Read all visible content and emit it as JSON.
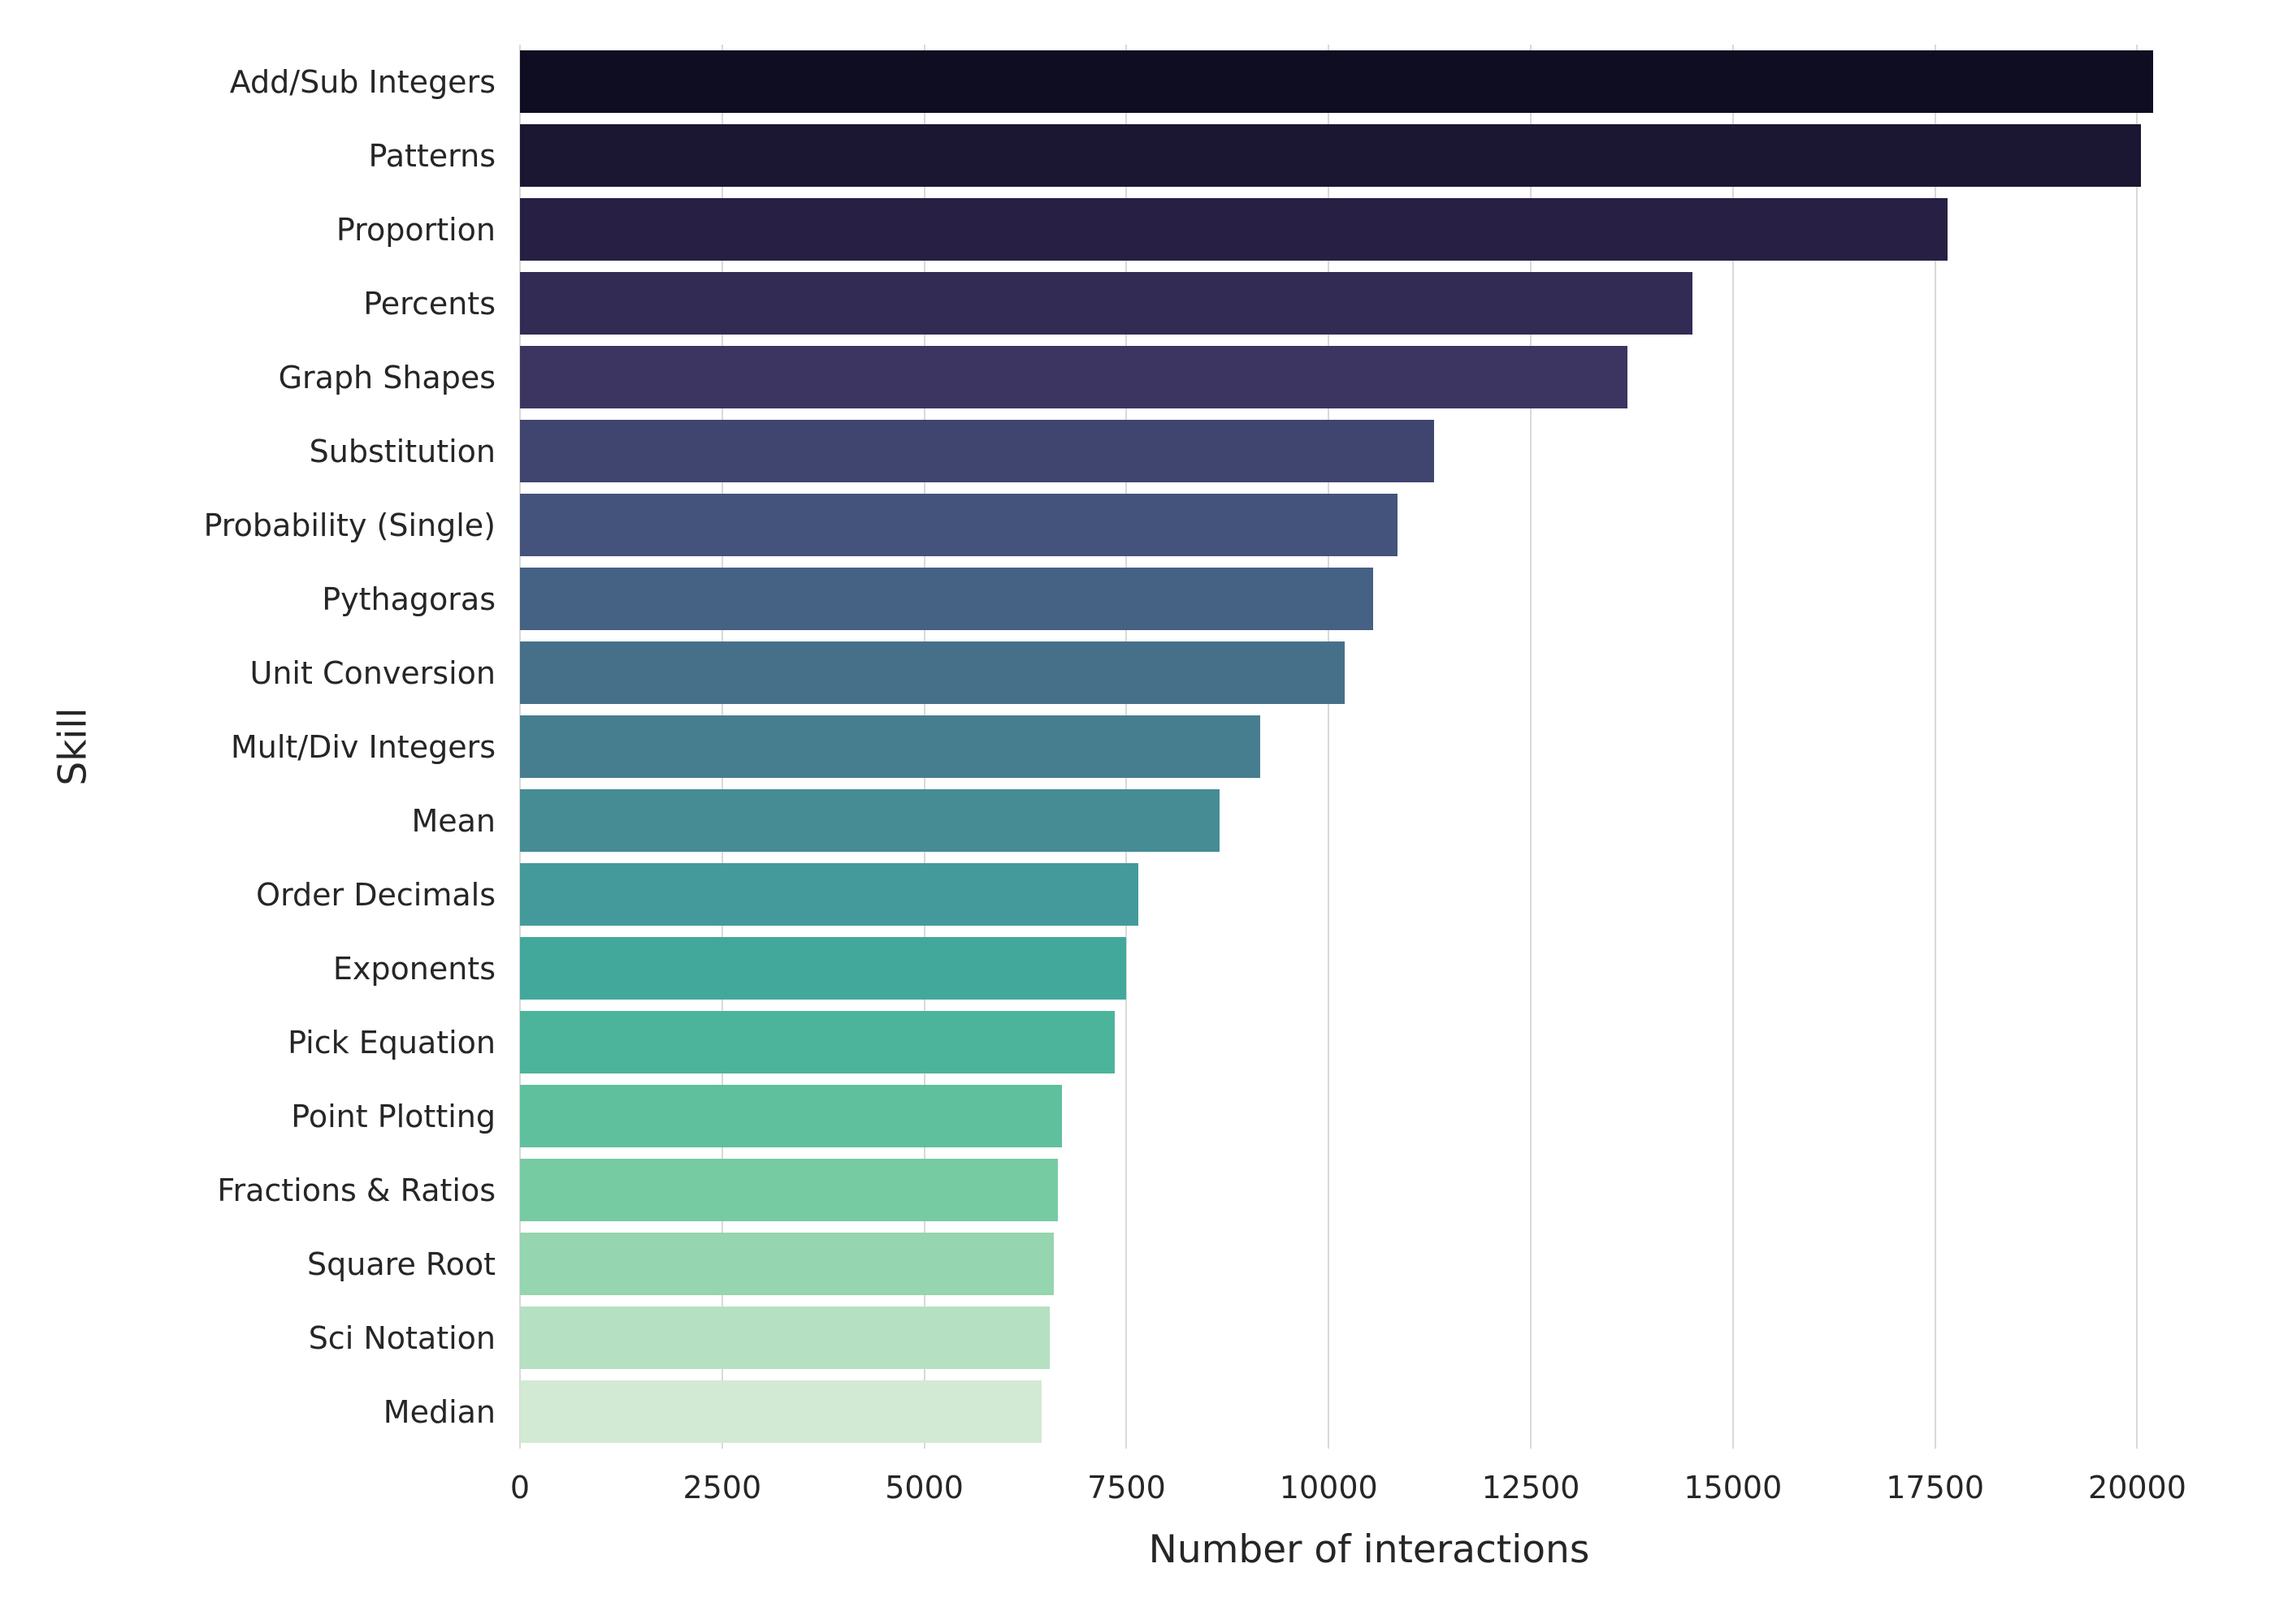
{
  "chart_data": {
    "type": "bar",
    "orientation": "horizontal",
    "title": "",
    "xlabel": "Number of interactions",
    "ylabel": "Skill",
    "xlim": [
      0,
      21000
    ],
    "grid": "vertical",
    "background_color": "#ffffff",
    "grid_color": "#d9d9d9",
    "text_color": "#262626",
    "xticks": [
      0,
      2500,
      5000,
      7500,
      10000,
      12500,
      15000,
      17500,
      20000
    ],
    "xtick_labels": [
      "0",
      "2500",
      "5000",
      "7500",
      "10000",
      "12500",
      "15000",
      "17500",
      "20000"
    ],
    "categories": [
      "Add/Sub Integers",
      "Patterns",
      "Proportion",
      "Percents",
      "Graph Shapes",
      "Substitution",
      "Probability (Single)",
      "Pythagoras",
      "Unit Conversion",
      "Mult/Div Integers",
      "Mean",
      "Order Decimals",
      "Exponents",
      "Pick Equation",
      "Point Plotting",
      "Fractions & Ratios",
      "Square Root",
      "Sci Notation",
      "Median"
    ],
    "values": [
      20200,
      20050,
      17650,
      14500,
      13700,
      11300,
      10850,
      10550,
      10200,
      9150,
      8650,
      7650,
      7500,
      7350,
      6700,
      6650,
      6600,
      6550,
      6450
    ],
    "colors": [
      "#0e0d22",
      "#1b1631",
      "#272044",
      "#322b54",
      "#3c3561",
      "#40456f",
      "#43537c",
      "#456183",
      "#46708a",
      "#467e90",
      "#458c95",
      "#449a9a",
      "#43a89c",
      "#4cb49b",
      "#5fc09d",
      "#77cba3",
      "#95d5af",
      "#b6e0c2",
      "#d2ead3"
    ]
  }
}
